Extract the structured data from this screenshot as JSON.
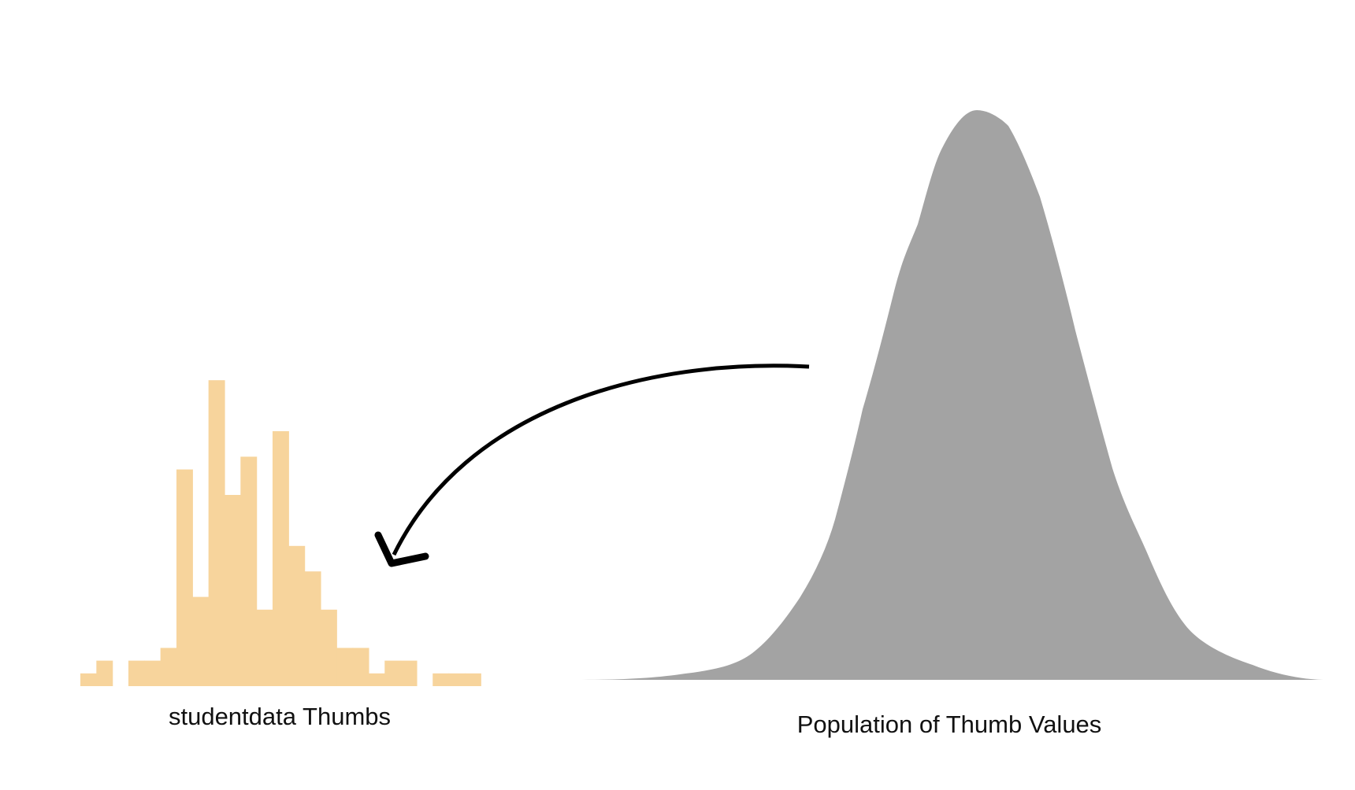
{
  "sample": {
    "label": "studentdata Thumbs",
    "color": "#F7D49C",
    "bar_counts": [
      1,
      2,
      0,
      2,
      2,
      3,
      17,
      7,
      24,
      15,
      18,
      6,
      20,
      11,
      9,
      6,
      3,
      3,
      1,
      2,
      2,
      0,
      1,
      1,
      1
    ]
  },
  "population": {
    "label": "Population of Thumb Values",
    "color": "#A3A3A3",
    "shape": "bell-curve"
  },
  "arrow": {
    "direction": "population-to-sample",
    "color": "#000000"
  }
}
